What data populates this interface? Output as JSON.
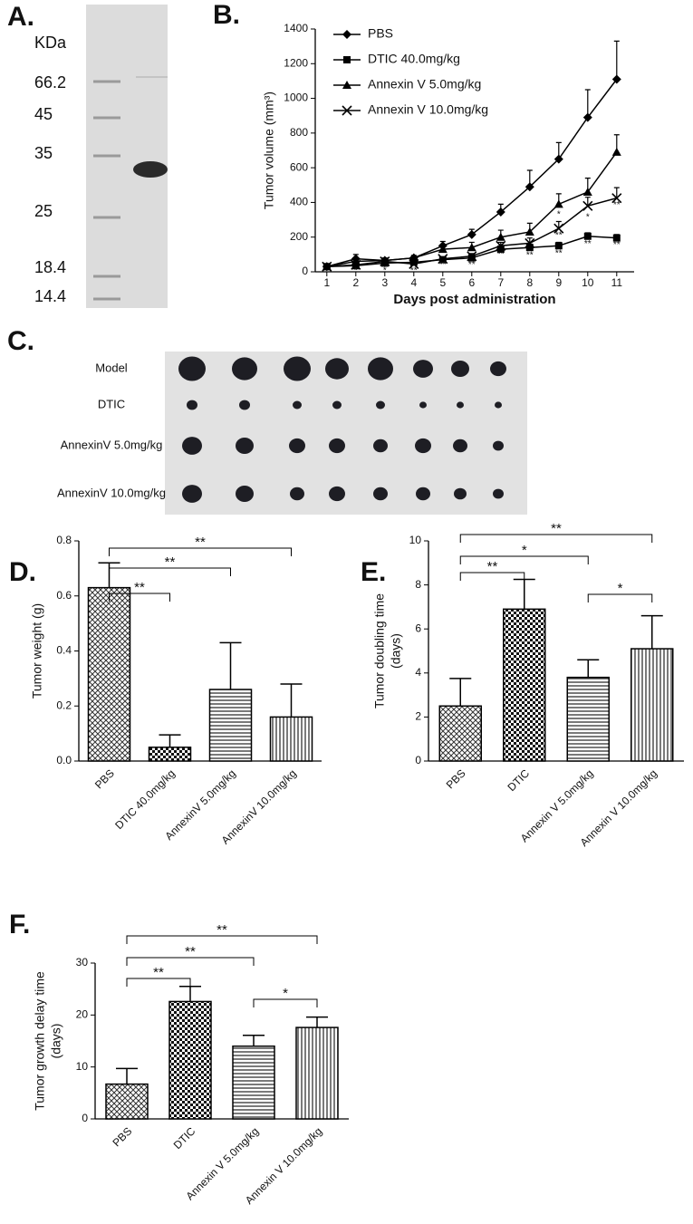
{
  "gel": {
    "panel_label": "A.",
    "unit": "KDa",
    "markers": [
      66.2,
      45,
      35,
      25,
      18.4,
      14.4
    ]
  },
  "photo": {
    "panel_label": "C.",
    "rows": [
      "Model",
      "DTIC",
      "AnnexinV 5.0mg/kg",
      "AnnexinV 10.0mg/kg"
    ]
  },
  "chart_data": [
    {
      "type": "line",
      "panel_label": "B.",
      "ylabel": "Tumor volume (mm³)",
      "xlabel": "Days post administration",
      "x": [
        1,
        2,
        3,
        4,
        5,
        6,
        7,
        8,
        9,
        10,
        11
      ],
      "xlim": [
        0.6,
        11.6
      ],
      "xticks": [
        1,
        2,
        3,
        4,
        5,
        6,
        7,
        8,
        9,
        10,
        11
      ],
      "ylim": [
        0,
        1400
      ],
      "yticks": [
        0,
        200,
        400,
        600,
        800,
        1000,
        1200,
        1400
      ],
      "series": [
        {
          "name": "PBS",
          "color": "#000000",
          "marker": "diamond",
          "values": [
            30,
            75,
            65,
            80,
            150,
            215,
            345,
            490,
            650,
            890,
            1110
          ],
          "error": [
            10,
            25,
            15,
            15,
            25,
            30,
            45,
            95,
            95,
            160,
            220
          ]
        },
        {
          "name": "DTIC 40.0mg/kg",
          "color": "#000000",
          "marker": "square",
          "values": [
            30,
            35,
            50,
            55,
            70,
            80,
            130,
            140,
            150,
            205,
            195
          ],
          "error": [
            5,
            10,
            10,
            10,
            10,
            15,
            20,
            20,
            20,
            20,
            20
          ]
        },
        {
          "name": "Annexin V 5.0mg/kg",
          "color": "#000000",
          "marker": "triangle",
          "values": [
            30,
            60,
            65,
            80,
            130,
            140,
            200,
            230,
            390,
            460,
            690
          ],
          "error": [
            5,
            15,
            10,
            10,
            20,
            30,
            40,
            50,
            60,
            80,
            100
          ]
        },
        {
          "name": "Annexin V 10.0mg/kg",
          "color": "#000000",
          "marker": "x",
          "values": [
            30,
            40,
            60,
            45,
            75,
            90,
            150,
            165,
            250,
            380,
            425
          ],
          "error": [
            5,
            10,
            10,
            10,
            10,
            15,
            20,
            30,
            40,
            50,
            60
          ]
        }
      ],
      "annotations": [
        {
          "x": 2,
          "y": 5,
          "text": "*"
        },
        {
          "x": 3,
          "y": 5,
          "text": "*"
        },
        {
          "x": 4,
          "y": 5,
          "text": "**"
        },
        {
          "x": 5,
          "y": 40,
          "text": "**"
        },
        {
          "x": 6,
          "y": 40,
          "text": "**"
        },
        {
          "x": 7,
          "y": 100,
          "text": "**"
        },
        {
          "x": 8,
          "y": 95,
          "text": "**"
        },
        {
          "x": 9,
          "y": 105,
          "text": "**"
        },
        {
          "x": 10,
          "y": 160,
          "text": "**"
        },
        {
          "x": 11,
          "y": 155,
          "text": "**"
        },
        {
          "x": 9,
          "y": 210,
          "text": "**"
        },
        {
          "x": 9,
          "y": 330,
          "text": "*"
        },
        {
          "x": 10,
          "y": 315,
          "text": "*"
        },
        {
          "x": 11,
          "y": 385,
          "text": "**"
        }
      ]
    },
    {
      "type": "bar",
      "panel_label": "D.",
      "ylabel": [
        "Tumor weight (g)"
      ],
      "categories": [
        "PBS",
        "DTIC 40.0mg/kg",
        "AnnexinV 5.0mg/kg",
        "AnnexinV 10.0mg/kg"
      ],
      "values": [
        0.63,
        0.05,
        0.26,
        0.16
      ],
      "error": [
        0.09,
        0.045,
        0.17,
        0.12
      ],
      "ylim": [
        0,
        0.8
      ],
      "yticks": [
        {
          "value": 0,
          "label": "0.0"
        },
        0.2,
        0.4,
        0.6,
        0.8
      ],
      "significance": [
        {
          "from": 0,
          "to": 3,
          "text": "**"
        },
        {
          "from": 0,
          "to": 2,
          "text": "**"
        },
        {
          "from": 0,
          "to": 1,
          "text": "**"
        }
      ]
    },
    {
      "type": "bar",
      "panel_label": "E.",
      "ylabel": [
        "Tumor doubling time",
        "(days)"
      ],
      "categories": [
        "PBS",
        "DTIC",
        "Annexin V 5.0mg/kg",
        "Annexin V 10.0mg/kg"
      ],
      "values": [
        2.5,
        6.9,
        3.8,
        5.1
      ],
      "error": [
        1.25,
        1.35,
        0.8,
        1.5
      ],
      "ylim": [
        0,
        10
      ],
      "yticks": [
        0,
        2,
        4,
        6,
        8,
        10
      ],
      "significance": [
        {
          "from": 0,
          "to": 3,
          "text": "**"
        },
        {
          "from": 0,
          "to": 2,
          "text": "*"
        },
        {
          "from": 0,
          "to": 1,
          "text": "**"
        },
        {
          "from": 2,
          "to": 3,
          "text": "*"
        }
      ]
    },
    {
      "type": "bar",
      "panel_label": "F.",
      "ylabel": [
        "Tumor growth delay time",
        "(days)"
      ],
      "categories": [
        "PBS",
        "DTIC",
        "Annexin V 5.0mg/kg",
        "Annexin V 10.0mg/kg"
      ],
      "values": [
        6.7,
        22.6,
        14.0,
        17.6
      ],
      "error": [
        3.0,
        2.9,
        2.1,
        2.0
      ],
      "ylim": [
        0,
        30
      ],
      "yticks": [
        0,
        10,
        20,
        30
      ],
      "significance": [
        {
          "from": 0,
          "to": 3,
          "text": "**"
        },
        {
          "from": 0,
          "to": 2,
          "text": "**"
        },
        {
          "from": 0,
          "to": 1,
          "text": "**"
        },
        {
          "from": 2,
          "to": 3,
          "text": "*"
        }
      ]
    }
  ]
}
